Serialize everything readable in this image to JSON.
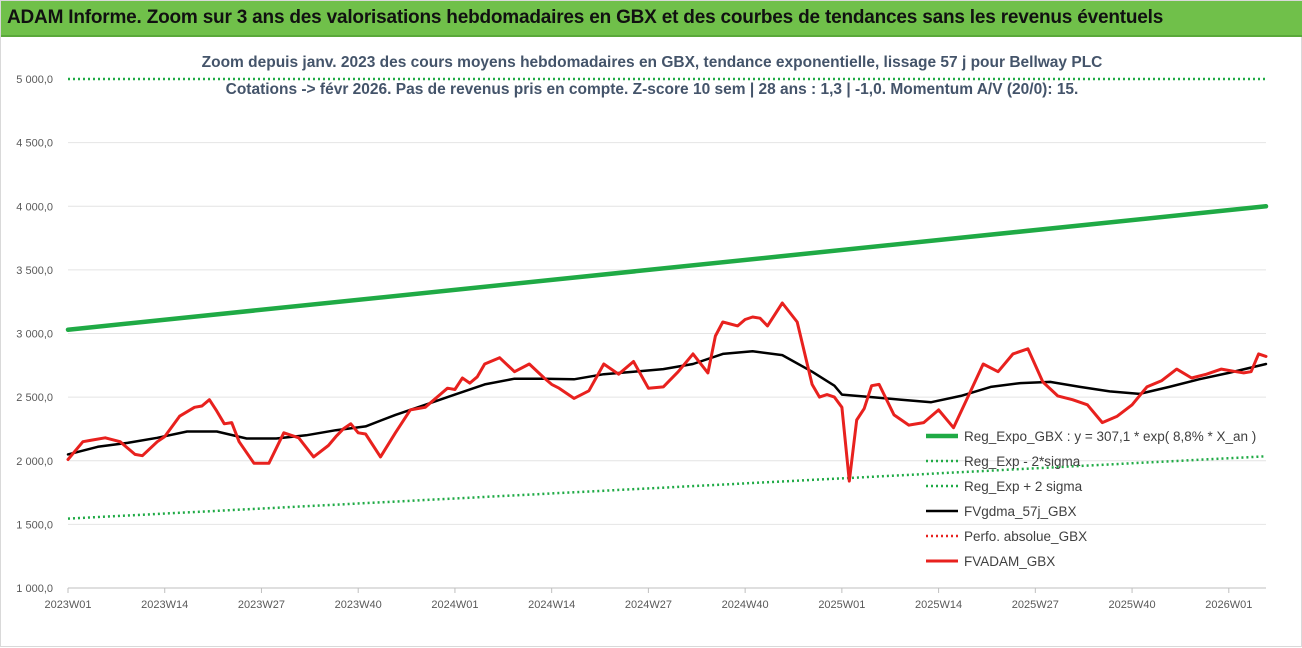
{
  "header": {
    "banner": "ADAM Informe. Zoom sur 3 ans des valorisations hebdomadaires en GBX et des courbes de tendances sans les revenus éventuels"
  },
  "chart_data": {
    "type": "line",
    "title": "Zoom depuis janv. 2023 des cours moyens hebdomadaires en GBX, tendance exponentielle, lissage 57 j pour Bellway PLC",
    "subtitle": "Cotations -> févr 2026.  Pas de revenus pris en compte. Z-score 10 sem | 28 ans : 1,3 | -1,0. Momentum A/V (20/0): 15.",
    "xlabel": "",
    "ylabel": "",
    "ylim": [
      1000,
      5000
    ],
    "yticks": [
      "5 000,0",
      "4 500,0",
      "4 000,0",
      "3 500,0",
      "3 000,0",
      "2 500,0",
      "2 000,0",
      "1 500,0",
      "1 000,0"
    ],
    "ytick_values": [
      5000,
      4500,
      4000,
      3500,
      3000,
      2500,
      2000,
      1500,
      1000
    ],
    "xlim": [
      0,
      161
    ],
    "xticks": [
      "2023W01",
      "2023W14",
      "2023W27",
      "2023W40",
      "2024W01",
      "2024W14",
      "2024W27",
      "2024W40",
      "2025W01",
      "2025W14",
      "2025W27",
      "2025W40",
      "2026W01"
    ],
    "xtick_values": [
      0,
      13,
      26,
      39,
      52,
      65,
      78,
      91,
      104,
      117,
      130,
      143,
      156
    ],
    "grid": "horizontal",
    "legend_position": "right",
    "series": [
      {
        "name": "Reg_Expo_GBX : y = 307,1 * exp( 8,8% *   X_an )",
        "color": "#1faa45",
        "style": "solid-thick",
        "x": [
          0,
          161
        ],
        "y": [
          3030,
          4000
        ]
      },
      {
        "name": "Reg_Exp - 2*sigma",
        "color": "#1faa45",
        "style": "dotted",
        "x": [
          0,
          161
        ],
        "y": [
          5000,
          5000
        ]
      },
      {
        "name": "Reg_Exp + 2 sigma",
        "color": "#1faa45",
        "style": "dotted",
        "x": [
          0,
          161
        ],
        "y": [
          1545,
          2035
        ]
      },
      {
        "name": "FVgdma_57j_GBX",
        "color": "#000000",
        "style": "solid",
        "x": [
          0,
          4,
          8,
          12,
          16,
          20,
          24,
          28,
          32,
          36,
          40,
          44,
          48,
          52,
          56,
          60,
          64,
          68,
          72,
          76,
          80,
          84,
          88,
          92,
          96,
          100,
          103,
          104,
          108,
          112,
          116,
          120,
          124,
          128,
          132,
          136,
          140,
          144,
          148,
          152,
          156,
          161
        ],
        "y": [
          2050,
          2110,
          2140,
          2180,
          2230,
          2230,
          2175,
          2175,
          2200,
          2240,
          2270,
          2360,
          2440,
          2520,
          2600,
          2645,
          2645,
          2640,
          2680,
          2700,
          2720,
          2760,
          2840,
          2860,
          2830,
          2700,
          2590,
          2520,
          2500,
          2480,
          2460,
          2510,
          2580,
          2610,
          2620,
          2580,
          2545,
          2525,
          2580,
          2640,
          2690,
          2760
        ]
      },
      {
        "name": "Perfo. absolue_GBX",
        "color": "#e8211e",
        "style": "dotted",
        "x": [],
        "y": []
      },
      {
        "name": "FVADAM_GBX",
        "color": "#e8211e",
        "style": "solid-thick",
        "x": [
          0,
          2,
          3,
          5,
          7,
          9,
          10,
          12,
          13,
          15,
          17,
          18,
          19,
          20,
          21,
          22,
          23,
          25,
          27,
          29,
          31,
          33,
          35,
          36,
          37,
          38,
          39,
          40,
          42,
          44,
          46,
          48,
          50,
          51,
          52,
          53,
          54,
          55,
          56,
          58,
          60,
          62,
          64,
          65,
          66,
          68,
          70,
          72,
          73,
          74,
          76,
          78,
          80,
          82,
          84,
          86,
          87,
          88,
          90,
          91,
          92,
          93,
          94,
          96,
          98,
          100,
          101,
          102,
          103,
          104,
          105,
          106,
          107,
          108,
          109,
          111,
          113,
          115,
          117,
          119,
          121,
          123,
          125,
          127,
          129,
          131,
          133,
          135,
          137,
          139,
          141,
          143,
          145,
          147,
          149,
          151,
          153,
          155,
          157,
          158,
          159,
          160,
          161
        ],
        "y": [
          2010,
          2150,
          2160,
          2180,
          2150,
          2050,
          2040,
          2150,
          2190,
          2350,
          2420,
          2430,
          2480,
          2390,
          2290,
          2300,
          2150,
          1980,
          1980,
          2220,
          2180,
          2030,
          2120,
          2190,
          2250,
          2290,
          2220,
          2210,
          2030,
          2220,
          2400,
          2420,
          2520,
          2570,
          2560,
          2650,
          2610,
          2660,
          2760,
          2810,
          2700,
          2760,
          2650,
          2600,
          2570,
          2490,
          2550,
          2760,
          2720,
          2680,
          2780,
          2570,
          2580,
          2700,
          2840,
          2690,
          2980,
          3090,
          3060,
          3110,
          3130,
          3120,
          3060,
          3240,
          3090,
          2600,
          2500,
          2520,
          2500,
          2420,
          1840,
          2320,
          2410,
          2590,
          2600,
          2360,
          2280,
          2300,
          2400,
          2260,
          2510,
          2760,
          2700,
          2840,
          2880,
          2620,
          2510,
          2480,
          2440,
          2300,
          2350,
          2440,
          2580,
          2630,
          2720,
          2650,
          2680,
          2720,
          2700,
          2690,
          2700,
          2840,
          2820
        ]
      }
    ]
  }
}
